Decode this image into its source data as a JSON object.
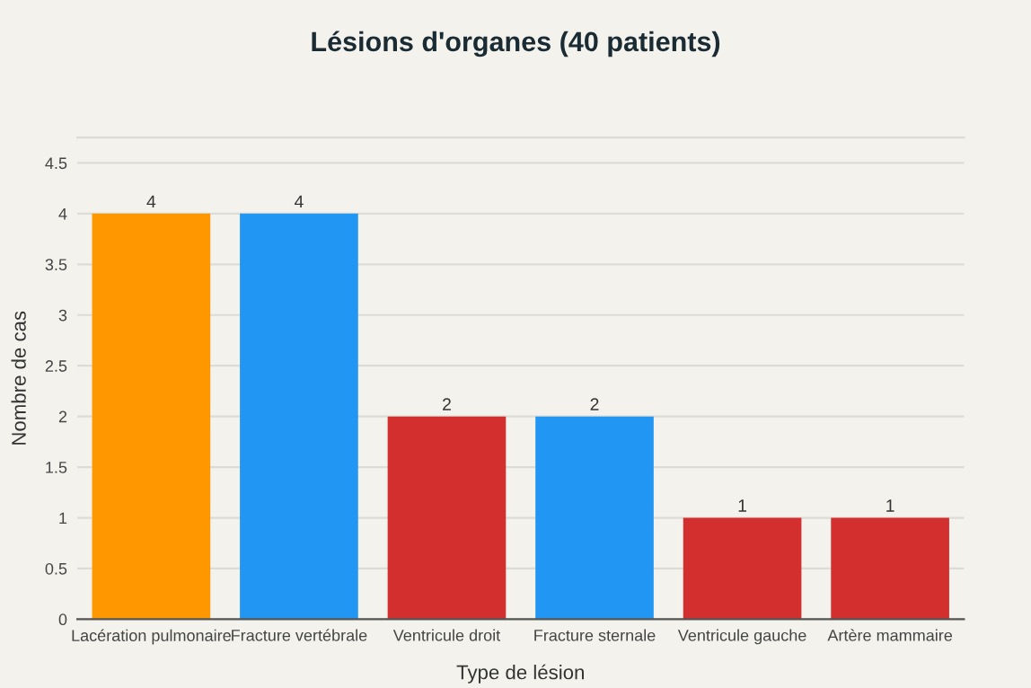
{
  "chart_data": {
    "type": "bar",
    "title": "Lésions d'organes (40 patients)",
    "xlabel": "Type de lésion",
    "ylabel": "Nombre de cas",
    "categories": [
      "Lacération pulmonaire",
      "Fracture vertébrale",
      "Ventricule droit",
      "Fracture sternale",
      "Ventricule gauche",
      "Artère mammaire"
    ],
    "values": [
      4,
      4,
      2,
      2,
      1,
      1
    ],
    "colors": [
      "#ff9800",
      "#2196f3",
      "#d32f2f",
      "#2196f3",
      "#d32f2f",
      "#d32f2f"
    ],
    "ylim": [
      0,
      4.75
    ],
    "yticks": [
      0,
      0.5,
      1,
      1.5,
      2,
      2.5,
      3,
      3.5,
      4,
      4.5
    ],
    "grid": "y",
    "data_labels": true
  }
}
